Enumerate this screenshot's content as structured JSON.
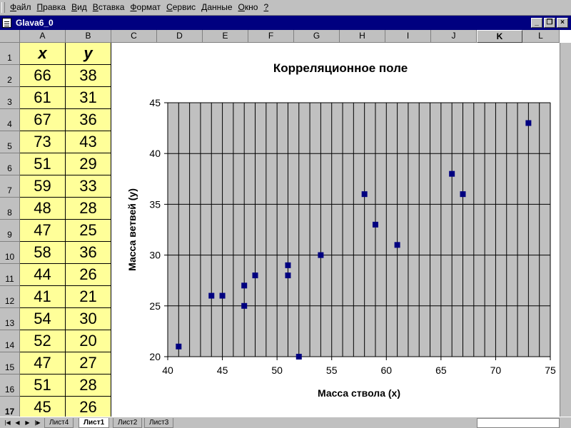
{
  "menu": [
    "Файл",
    "Правка",
    "Вид",
    "Вставка",
    "Формат",
    "Сервис",
    "Данные",
    "Окно",
    "?"
  ],
  "window": {
    "title": "Glava6_0"
  },
  "columns": [
    "A",
    "B",
    "C",
    "D",
    "E",
    "F",
    "G",
    "H",
    "I",
    "J",
    "K",
    "L"
  ],
  "active_column": "K",
  "rows": [
    "1",
    "2",
    "3",
    "4",
    "5",
    "6",
    "7",
    "8",
    "9",
    "10",
    "11",
    "12",
    "13",
    "14",
    "15",
    "16",
    "17"
  ],
  "table": {
    "header": [
      "x",
      "y"
    ],
    "x": [
      "66",
      "61",
      "67",
      "73",
      "51",
      "59",
      "48",
      "47",
      "58",
      "44",
      "41",
      "54",
      "52",
      "47",
      "51",
      "45"
    ],
    "y": [
      "38",
      "31",
      "36",
      "43",
      "29",
      "33",
      "28",
      "25",
      "36",
      "26",
      "21",
      "30",
      "20",
      "27",
      "28",
      "26"
    ]
  },
  "sheet_tabs": [
    "Лист4",
    "Лист1",
    "Лист2",
    "Лист3"
  ],
  "active_sheet": "Лист1",
  "chart_data": {
    "type": "scatter",
    "title": "Корреляционное поле",
    "xlabel": "Масса ствола (x)",
    "ylabel": "Масса ветвей (y)",
    "xlim": [
      40,
      75
    ],
    "ylim": [
      20,
      45
    ],
    "xticks": [
      "40",
      "45",
      "50",
      "55",
      "60",
      "65",
      "70",
      "75"
    ],
    "yticks": [
      "20",
      "25",
      "30",
      "35",
      "40",
      "45"
    ],
    "points": [
      [
        66,
        38
      ],
      [
        61,
        31
      ],
      [
        67,
        36
      ],
      [
        73,
        43
      ],
      [
        51,
        29
      ],
      [
        59,
        33
      ],
      [
        48,
        28
      ],
      [
        47,
        25
      ],
      [
        58,
        36
      ],
      [
        44,
        26
      ],
      [
        41,
        21
      ],
      [
        54,
        30
      ],
      [
        52,
        20
      ],
      [
        47,
        27
      ],
      [
        51,
        28
      ],
      [
        45,
        26
      ]
    ],
    "grid": true,
    "plot_background": "#c0c0c0",
    "marker_color": "#000080"
  }
}
